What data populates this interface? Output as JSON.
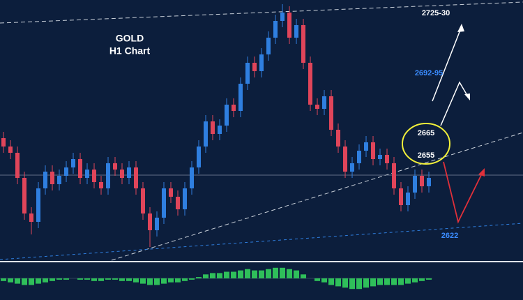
{
  "chart_data": {
    "type": "candlestick",
    "title": "GOLD",
    "subtitle": "H1 Chart",
    "annotations": [
      "2725-30",
      "2692-95",
      "2665",
      "2655",
      "2622"
    ],
    "up_color": "#2f7fe0",
    "down_color": "#e0455a",
    "ylim": [
      2606,
      2730
    ],
    "open": [
      2664,
      2660,
      2657,
      2645,
      2628,
      2624,
      2640,
      2648,
      2642,
      2646,
      2650,
      2654,
      2645,
      2649,
      2643,
      2640,
      2652,
      2649,
      2645,
      2650,
      2640,
      2628,
      2620,
      2626,
      2640,
      2636,
      2630,
      2640,
      2650,
      2660,
      2672,
      2666,
      2670,
      2680,
      2677,
      2690,
      2700,
      2696,
      2704,
      2712,
      2720,
      2724,
      2712,
      2718,
      2700,
      2680,
      2678,
      2684,
      2668,
      2660,
      2648,
      2652,
      2658,
      2662,
      2654,
      2656,
      2652,
      2640,
      2632,
      2638,
      2646,
      2641
    ],
    "close": [
      2660,
      2657,
      2645,
      2628,
      2624,
      2640,
      2648,
      2642,
      2646,
      2650,
      2654,
      2645,
      2649,
      2643,
      2640,
      2652,
      2649,
      2645,
      2650,
      2640,
      2628,
      2620,
      2626,
      2640,
      2636,
      2630,
      2640,
      2650,
      2660,
      2672,
      2666,
      2670,
      2680,
      2677,
      2690,
      2700,
      2696,
      2704,
      2712,
      2720,
      2724,
      2712,
      2718,
      2700,
      2680,
      2678,
      2684,
      2668,
      2660,
      2648,
      2652,
      2658,
      2662,
      2654,
      2656,
      2652,
      2640,
      2632,
      2638,
      2646,
      2641,
      2645
    ],
    "high": [
      2667,
      2663,
      2660,
      2648,
      2631,
      2643,
      2651,
      2651,
      2649,
      2653,
      2657,
      2657,
      2652,
      2652,
      2646,
      2655,
      2655,
      2652,
      2653,
      2653,
      2643,
      2631,
      2629,
      2643,
      2643,
      2639,
      2643,
      2653,
      2663,
      2675,
      2675,
      2673,
      2683,
      2683,
      2693,
      2703,
      2703,
      2707,
      2715,
      2723,
      2728,
      2727,
      2721,
      2721,
      2703,
      2683,
      2687,
      2687,
      2671,
      2663,
      2655,
      2661,
      2665,
      2665,
      2659,
      2659,
      2655,
      2643,
      2641,
      2649,
      2649,
      2648
    ],
    "low": [
      2657,
      2654,
      2642,
      2625,
      2618,
      2621,
      2637,
      2639,
      2639,
      2643,
      2647,
      2642,
      2642,
      2640,
      2637,
      2637,
      2646,
      2642,
      2642,
      2637,
      2625,
      2612,
      2617,
      2623,
      2633,
      2627,
      2627,
      2637,
      2647,
      2657,
      2663,
      2663,
      2667,
      2674,
      2674,
      2687,
      2693,
      2693,
      2701,
      2709,
      2717,
      2709,
      2709,
      2697,
      2677,
      2675,
      2675,
      2665,
      2657,
      2645,
      2645,
      2649,
      2655,
      2651,
      2651,
      2649,
      2637,
      2629,
      2629,
      2635,
      2638,
      2638
    ],
    "histogram": {
      "color": "#2fbf5a",
      "ylim": [
        -10,
        10
      ],
      "values": [
        -2,
        -3,
        -4,
        -5,
        -5,
        -4,
        -3,
        -2,
        -1,
        -1,
        0,
        -1,
        -1,
        -2,
        -2,
        -1,
        -1,
        -2,
        -2,
        -3,
        -4,
        -5,
        -5,
        -4,
        -3,
        -3,
        -2,
        -1,
        1,
        3,
        4,
        4,
        5,
        5,
        6,
        7,
        6,
        6,
        7,
        8,
        8,
        7,
        6,
        3,
        0,
        -2,
        -3,
        -5,
        -6,
        -7,
        -8,
        -8,
        -7,
        -6,
        -5,
        -5,
        -5,
        -5,
        -4,
        -3,
        -2,
        -1
      ]
    }
  }
}
